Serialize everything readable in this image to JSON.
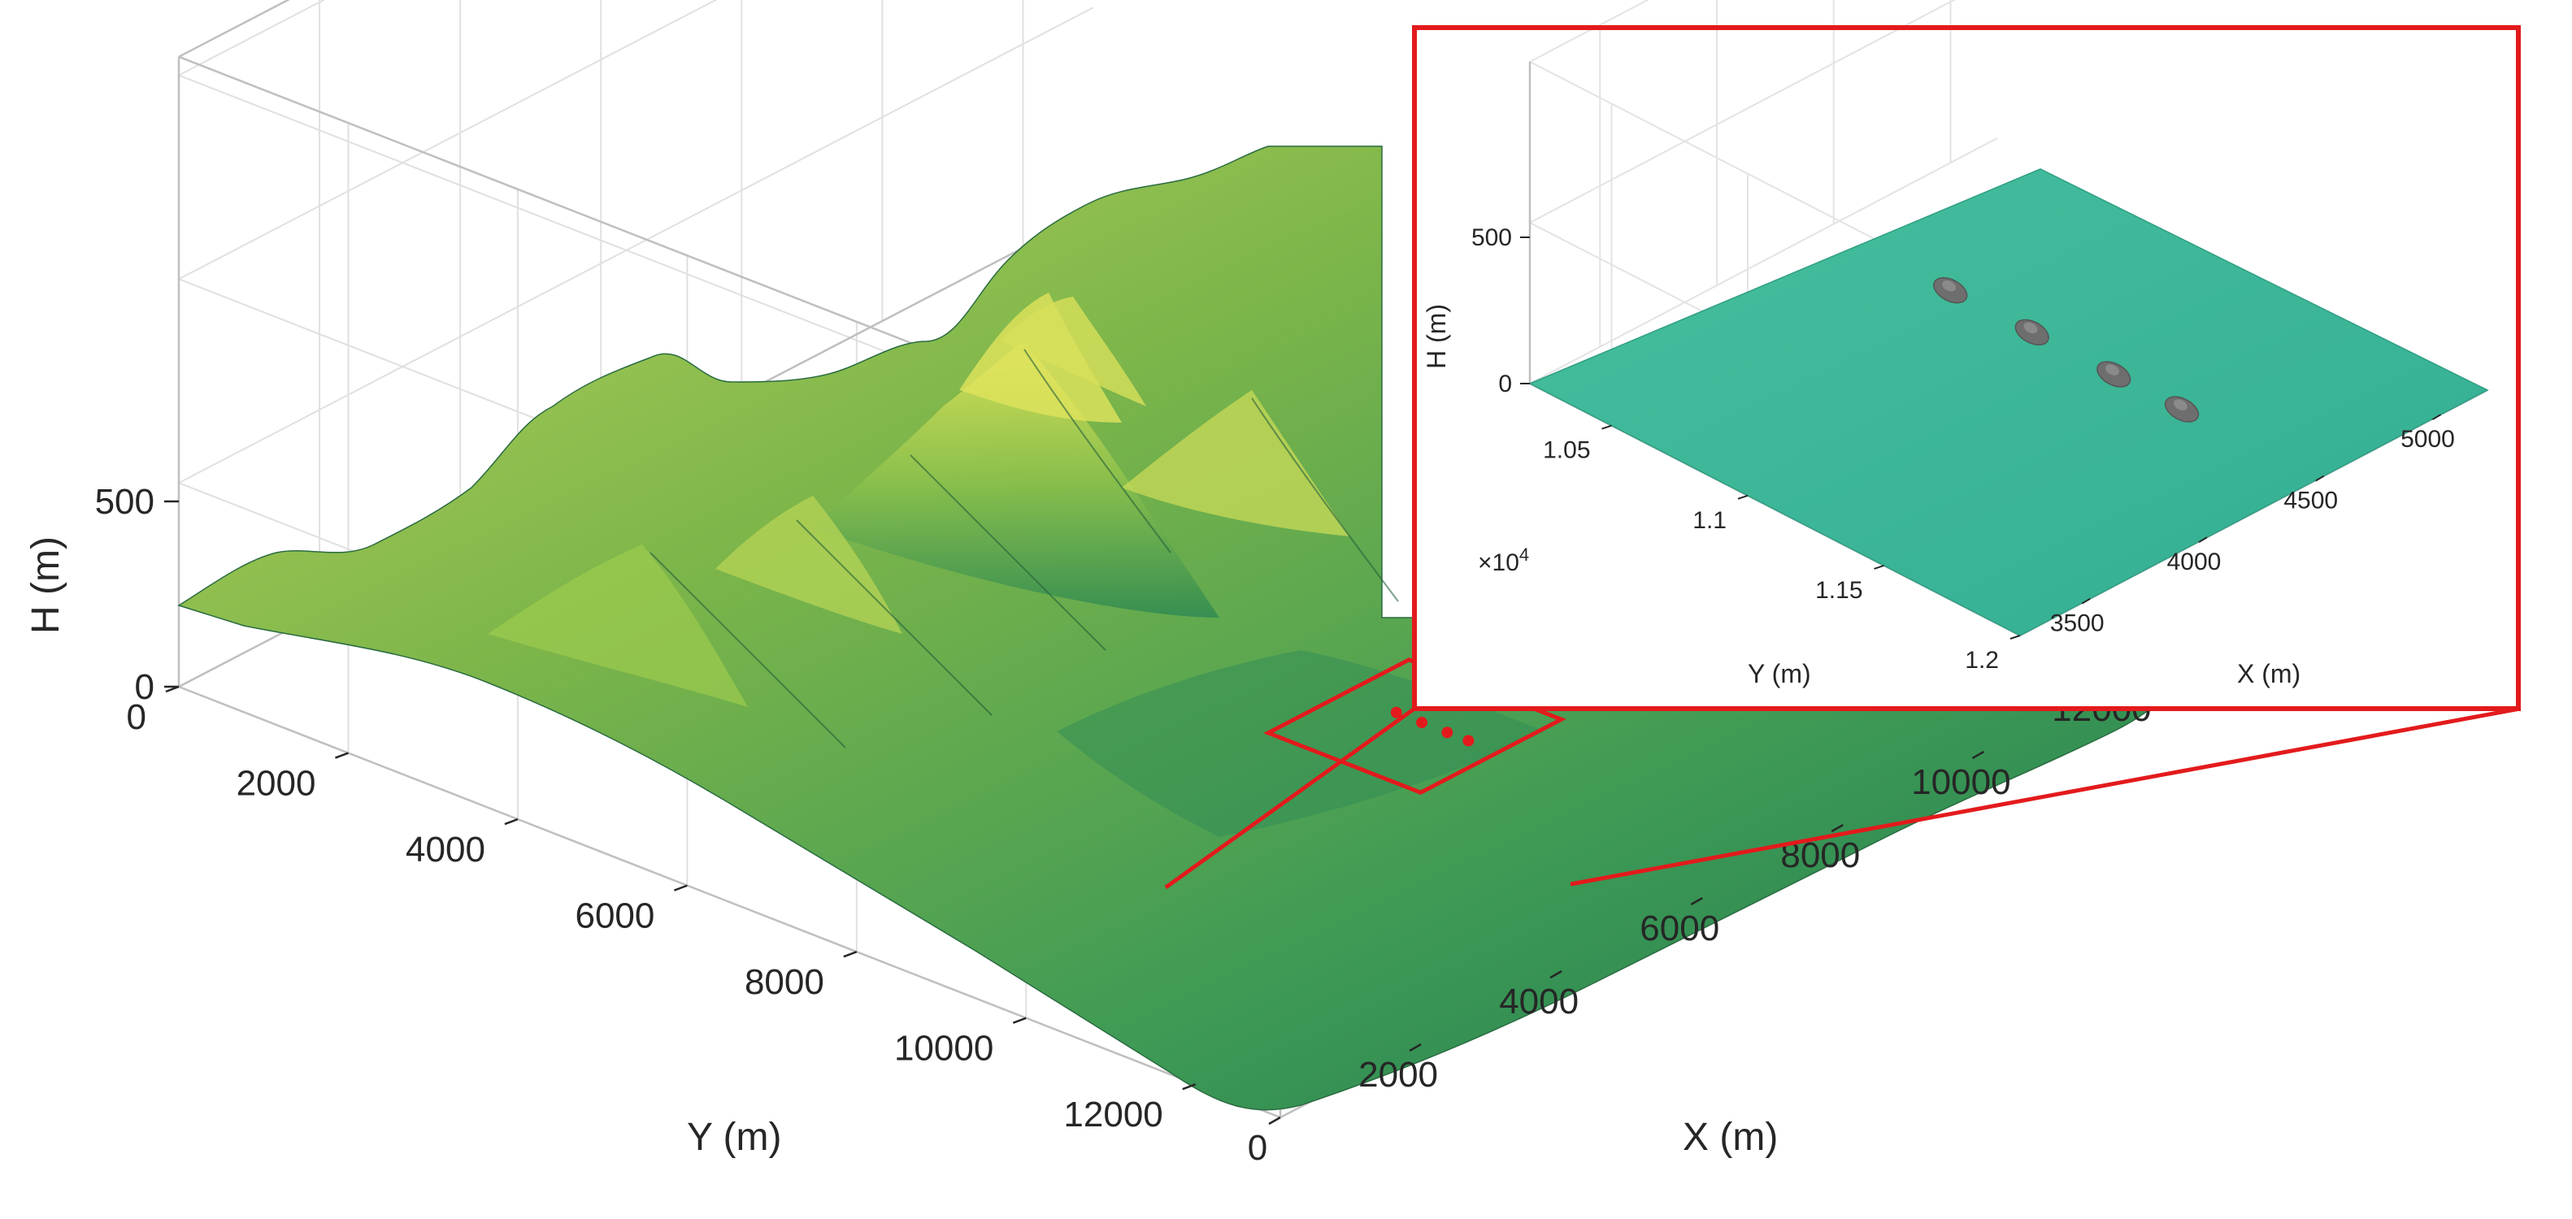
{
  "chart_data": [
    {
      "type": "surface",
      "xlabel": "X (m)",
      "ylabel": "Y (m)",
      "zlabel": "H (m)",
      "xlim": [
        0,
        13000
      ],
      "ylim": [
        0,
        13000
      ],
      "zlim": [
        0,
        500
      ],
      "x_ticks": [
        "0",
        "2000",
        "4000",
        "6000",
        "8000",
        "10000",
        "12000"
      ],
      "x_tick_values": [
        0,
        2000,
        4000,
        6000,
        8000,
        10000,
        12000
      ],
      "y_ticks": [
        "0",
        "2000",
        "4000",
        "6000",
        "8000",
        "10000",
        "12000"
      ],
      "y_tick_values": [
        0,
        2000,
        4000,
        6000,
        8000,
        10000,
        12000
      ],
      "z_ticks": [
        "0",
        "500"
      ],
      "z_tick_values": [
        0,
        500
      ],
      "grid": true,
      "colormap": "summit (dark green to yellow by height)",
      "highlight_region": {
        "x": [
          3200,
          5200
        ],
        "y": [
          10200,
          12000
        ],
        "color": "#e31a1c"
      },
      "markers": {
        "color": "#e31a1c",
        "points": [
          {
            "x": 4300,
            "y": 10800
          },
          {
            "x": 4300,
            "y": 11100
          },
          {
            "x": 4300,
            "y": 11400
          },
          {
            "x": 4300,
            "y": 11650
          }
        ]
      }
    },
    {
      "type": "surface",
      "role": "zoomed inset of highlighted region",
      "xlabel": "X (m)",
      "ylabel": "Y (m)",
      "zlabel": "H (m)",
      "xlim": [
        3200,
        5200
      ],
      "ylim": [
        10200,
        12000
      ],
      "zlim": [
        0,
        500
      ],
      "x_ticks": [
        "3500",
        "4000",
        "4500",
        "5000"
      ],
      "x_tick_values": [
        3500,
        4000,
        4500,
        5000
      ],
      "y_ticks": [
        "1.05",
        "1.1",
        "1.15",
        "1.2"
      ],
      "y_tick_values": [
        10500,
        11000,
        11500,
        12000
      ],
      "y_exponent_label": "×10",
      "y_exponent_power": "4",
      "z_ticks": [
        "0",
        "500"
      ],
      "z_tick_values": [
        0,
        500
      ],
      "grid": true,
      "surface_color": "#3db89a",
      "border_color": "#e31a1c",
      "vehicles": {
        "color": "#6e6e6e",
        "points": [
          {
            "x": 4300,
            "y": 10800
          },
          {
            "x": 4300,
            "y": 11100
          },
          {
            "x": 4300,
            "y": 11400
          },
          {
            "x": 4300,
            "y": 11650
          }
        ]
      }
    }
  ]
}
